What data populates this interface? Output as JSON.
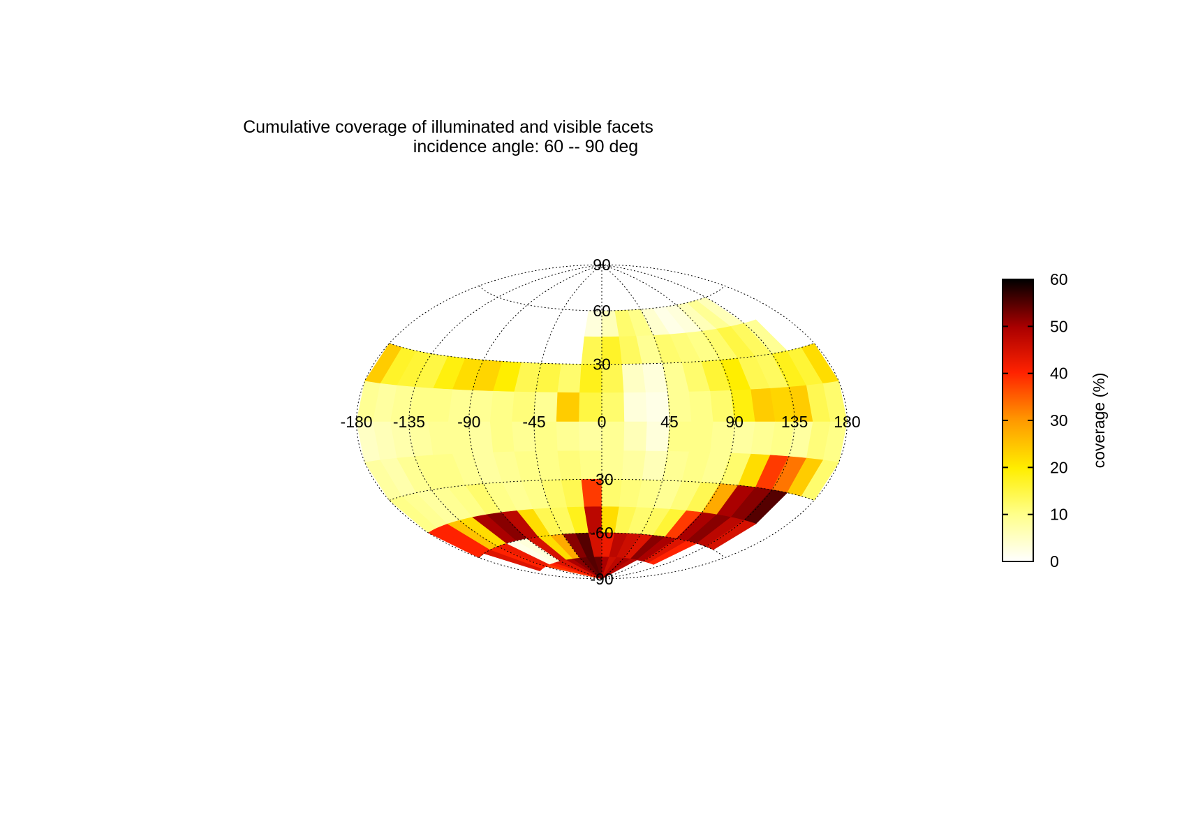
{
  "chart_data": {
    "type": "heatmap",
    "projection": "hammer-aitoff",
    "title": "Cumulative coverage of illuminated and visible facets",
    "subtitle": "incidence angle: 60 -- 90 deg",
    "x_ticks": [
      "-180",
      "-135",
      "-90",
      "-45",
      "0",
      "45",
      "90",
      "135",
      "180"
    ],
    "y_ticks": [
      "90",
      "60",
      "30",
      "-30",
      "-60",
      "-90"
    ],
    "colorbar": {
      "label": "coverage (%)",
      "range": [
        0,
        60
      ],
      "ticks": [
        "0",
        "10",
        "20",
        "30",
        "40",
        "50",
        "60"
      ],
      "colors": [
        "#ffffff",
        "#ffff66",
        "#ffee00",
        "#ff9900",
        "#ff2200",
        "#aa0000",
        "#000000"
      ]
    },
    "lon_bins": [
      -180,
      -165,
      -150,
      -135,
      -120,
      -105,
      -90,
      -75,
      -60,
      -45,
      -30,
      -15,
      0,
      15,
      30,
      45,
      60,
      75,
      90,
      105,
      120,
      135,
      150,
      165,
      180
    ],
    "lat_bands": [
      {
        "lat": [
          60,
          90
        ],
        "values": [
          null,
          null,
          null,
          null,
          null,
          null,
          null,
          null,
          null,
          null,
          null,
          null,
          null,
          null,
          null,
          null,
          null,
          null,
          null,
          null,
          null,
          null,
          null,
          null
        ]
      },
      {
        "lat": [
          45,
          60
        ],
        "values": [
          null,
          null,
          null,
          null,
          null,
          null,
          null,
          null,
          null,
          null,
          null,
          3,
          6,
          12,
          10,
          4,
          2,
          3,
          6,
          9,
          6,
          null,
          null,
          null
        ]
      },
      {
        "lat": [
          30,
          45
        ],
        "values": [
          null,
          null,
          null,
          null,
          null,
          null,
          null,
          null,
          null,
          null,
          null,
          14,
          17,
          13,
          9,
          12,
          11,
          10,
          12,
          15,
          13,
          9,
          null,
          null
        ]
      },
      {
        "lat": [
          15,
          30
        ],
        "values": [
          24,
          17,
          16,
          15,
          19,
          22,
          23,
          20,
          14,
          15,
          12,
          18,
          14,
          5,
          3,
          9,
          12,
          16,
          20,
          14,
          13,
          18,
          16,
          22
        ]
      },
      {
        "lat": [
          0,
          15
        ],
        "values": [
          9,
          8,
          9,
          10,
          10,
          9,
          9,
          10,
          11,
          9,
          24,
          15,
          12,
          3,
          2,
          9,
          10,
          12,
          19,
          24,
          23,
          24,
          14,
          12
        ]
      },
      {
        "lat": [
          -15,
          0
        ],
        "values": [
          5,
          6,
          7,
          8,
          9,
          9,
          8,
          10,
          9,
          10,
          9,
          8,
          9,
          6,
          3,
          10,
          10,
          9,
          8,
          9,
          10,
          8,
          11,
          10
        ]
      },
      {
        "lat": [
          -30,
          -15
        ],
        "values": [
          8,
          7,
          9,
          10,
          10,
          9,
          8,
          9,
          10,
          10,
          11,
          10,
          9,
          8,
          6,
          9,
          10,
          9,
          12,
          22,
          38,
          33,
          24,
          12
        ]
      },
      {
        "lat": [
          -45,
          -30
        ],
        "values": [
          10,
          9,
          8,
          9,
          10,
          12,
          10,
          9,
          10,
          12,
          14,
          38,
          12,
          11,
          10,
          9,
          11,
          14,
          28,
          50,
          52,
          55,
          null,
          null
        ]
      },
      {
        "lat": [
          -60,
          -45
        ],
        "values": [
          40,
          40,
          25,
          22,
          50,
          52,
          48,
          22,
          14,
          13,
          18,
          48,
          22,
          14,
          12,
          13,
          16,
          38,
          50,
          52,
          48,
          45,
          null,
          null
        ]
      },
      {
        "lat": [
          -75,
          -60
        ],
        "values": [
          null,
          44,
          40,
          42,
          2,
          3,
          45,
          22,
          28,
          52,
          55,
          45,
          42,
          48,
          46,
          44,
          52,
          50,
          44,
          40,
          null,
          null,
          null,
          null
        ]
      },
      {
        "lat": [
          -90,
          -75
        ],
        "values": [
          null,
          null,
          null,
          38,
          40,
          44,
          44,
          50,
          52,
          54,
          55,
          54,
          50,
          46,
          48,
          50,
          48,
          null,
          null,
          null,
          null,
          null,
          null,
          null
        ]
      }
    ]
  }
}
